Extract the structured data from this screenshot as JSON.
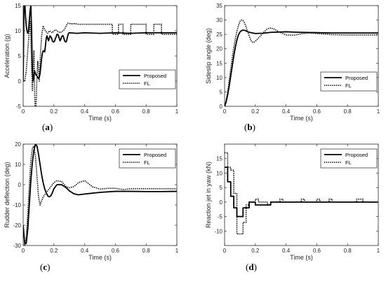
{
  "chart_data": [
    {
      "type": "line",
      "panel_label": "a",
      "xlabel": "Time (s)",
      "ylabel": "Acceleration (g)",
      "xlim": [
        0,
        1
      ],
      "ylim": [
        -5,
        15
      ],
      "xticks": [
        "0",
        "0.2",
        "0.4",
        "0.6",
        "0.8",
        "1"
      ],
      "yticks": [
        "-5",
        "0",
        "5",
        "10",
        "15"
      ],
      "grid": false,
      "legend": "right",
      "series": [
        {
          "name": "Proposed",
          "style": "solid",
          "x": [
            0,
            0.005,
            0.01,
            0.015,
            0.02,
            0.025,
            0.03,
            0.035,
            0.04,
            0.045,
            0.05,
            0.055,
            0.06,
            0.065,
            0.07,
            0.075,
            0.08,
            0.085,
            0.09,
            0.095,
            0.1,
            0.105,
            0.11,
            0.115,
            0.12,
            0.125,
            0.13,
            0.135,
            0.14,
            0.145,
            0.15,
            0.155,
            0.16,
            0.165,
            0.17,
            0.175,
            0.18,
            0.185,
            0.19,
            0.195,
            0.2,
            0.205,
            0.21,
            0.215,
            0.22,
            0.225,
            0.23,
            0.235,
            0.24,
            0.245,
            0.25,
            0.255,
            0.26,
            0.265,
            0.27,
            0.275,
            0.28,
            0.285,
            0.29,
            0.295,
            0.3,
            0.35,
            0.4,
            0.5,
            0.6,
            0.7,
            0.8,
            0.9,
            1.0
          ],
          "y": [
            0,
            14,
            16,
            13,
            11,
            10,
            9.5,
            10,
            12,
            14,
            15,
            10,
            2,
            0,
            1,
            2,
            1.5,
            1.2,
            1,
            0.8,
            0.5,
            0.8,
            1.5,
            3,
            4.5,
            5.5,
            6,
            6,
            5.8,
            7,
            8.5,
            9,
            8.5,
            8,
            8.5,
            9,
            8.8,
            8.5,
            8,
            7.8,
            7.8,
            8,
            8.5,
            8.8,
            9.3,
            9.3,
            9,
            8.5,
            8,
            8.3,
            8.8,
            9,
            9,
            8.5,
            8,
            7.8,
            7.8,
            8.3,
            9,
            9.5,
            9.6,
            9.5,
            9.6,
            9.5,
            9.6,
            9.5,
            9.6,
            9.6,
            9.6
          ]
        },
        {
          "name": "FL",
          "style": "dotted",
          "x": [
            0,
            0.01,
            0.02,
            0.03,
            0.04,
            0.045,
            0.05,
            0.055,
            0.06,
            0.065,
            0.07,
            0.075,
            0.08,
            0.085,
            0.09,
            0.095,
            0.1,
            0.105,
            0.11,
            0.12,
            0.125,
            0.13,
            0.14,
            0.15,
            0.16,
            0.17,
            0.18,
            0.19,
            0.2,
            0.21,
            0.22,
            0.23,
            0.24,
            0.25,
            0.26,
            0.27,
            0.28,
            0.29,
            0.3,
            0.31,
            0.32,
            0.33,
            0.34,
            0.35,
            0.5,
            0.58,
            0.58,
            0.62,
            0.62,
            0.65,
            0.65,
            0.7,
            0.7,
            0.8,
            0.8,
            0.85,
            0.85,
            0.9,
            0.9,
            1.0
          ],
          "y": [
            0,
            0,
            2,
            6,
            10,
            12,
            9,
            3,
            -2,
            2,
            6,
            -3,
            -6,
            -4,
            1,
            4,
            2,
            0,
            4,
            9,
            10,
            11,
            10.2,
            9.8,
            9.5,
            10,
            9.8,
            9.6,
            10,
            10.2,
            10,
            9.8,
            9.6,
            9.8,
            10,
            10.3,
            11,
            11.5,
            11.5,
            11.3,
            11.5,
            11.3,
            11.5,
            11.3,
            11.3,
            11.3,
            9.3,
            9.3,
            11.3,
            11.3,
            9.3,
            9.3,
            11.3,
            11.3,
            9.3,
            9.3,
            11.3,
            11.3,
            9.3,
            9.3
          ]
        }
      ]
    },
    {
      "type": "line",
      "panel_label": "b",
      "xlabel": "Time (s)",
      "ylabel": "Sideslip angle (deg)",
      "xlim": [
        0,
        1
      ],
      "ylim": [
        0,
        35
      ],
      "xticks": [
        "0",
        "0.2",
        "0.4",
        "0.6",
        "0.8",
        "1"
      ],
      "yticks": [
        "0",
        "5",
        "10",
        "15",
        "20",
        "25",
        "30",
        "35"
      ],
      "grid": false,
      "legend": "bottom-right",
      "series": [
        {
          "name": "Proposed",
          "style": "solid",
          "x": [
            0,
            0.01,
            0.02,
            0.03,
            0.04,
            0.05,
            0.06,
            0.07,
            0.08,
            0.09,
            0.1,
            0.11,
            0.12,
            0.13,
            0.14,
            0.15,
            0.17,
            0.2,
            0.25,
            0.3,
            0.35,
            0.4,
            0.45,
            0.5,
            0.6,
            0.7,
            0.8,
            0.9,
            1.0
          ],
          "y": [
            0,
            1.5,
            4,
            7,
            10.5,
            14,
            17.5,
            20.5,
            23,
            24.8,
            25.8,
            26.3,
            26.5,
            26.4,
            26.2,
            25.9,
            25.6,
            25.3,
            25.4,
            25.7,
            25.8,
            25.9,
            25.8,
            25.7,
            25.6,
            25.5,
            25.5,
            25.5,
            25.5
          ]
        },
        {
          "name": "FL",
          "style": "dotted",
          "x": [
            0,
            0.01,
            0.02,
            0.03,
            0.04,
            0.05,
            0.06,
            0.07,
            0.08,
            0.09,
            0.1,
            0.11,
            0.12,
            0.13,
            0.14,
            0.15,
            0.16,
            0.17,
            0.18,
            0.19,
            0.2,
            0.22,
            0.25,
            0.28,
            0.3,
            0.32,
            0.35,
            0.4,
            0.45,
            0.5,
            0.55,
            0.6,
            0.65,
            0.7,
            0.8,
            0.9,
            1.0
          ],
          "y": [
            0,
            2,
            5,
            9,
            13,
            17,
            20.5,
            23.5,
            26,
            28,
            29.5,
            30,
            29.8,
            29,
            27.5,
            26,
            24.5,
            23,
            22.3,
            22.2,
            22.6,
            23.7,
            25.5,
            27,
            27.2,
            26.9,
            26,
            24.8,
            24.7,
            25.2,
            25.5,
            25.3,
            25.1,
            24.9,
            24.8,
            24.8,
            24.8
          ]
        }
      ]
    },
    {
      "type": "line",
      "panel_label": "c",
      "xlabel": "Time (s)",
      "ylabel": "Rudder deflection (deg)",
      "xlim": [
        0,
        1
      ],
      "ylim": [
        -30,
        20
      ],
      "xticks": [
        "0",
        "0.2",
        "0.4",
        "0.6",
        "0.8",
        "1"
      ],
      "yticks": [
        "-30",
        "-20",
        "-10",
        "0",
        "10",
        "20"
      ],
      "grid": false,
      "legend": "top-right",
      "series": [
        {
          "name": "Proposed",
          "style": "solid",
          "x": [
            0,
            0.01,
            0.02,
            0.03,
            0.04,
            0.05,
            0.06,
            0.07,
            0.08,
            0.09,
            0.1,
            0.11,
            0.12,
            0.13,
            0.14,
            0.15,
            0.16,
            0.17,
            0.18,
            0.19,
            0.2,
            0.22,
            0.25,
            0.28,
            0.3,
            0.33,
            0.36,
            0.4,
            0.5,
            0.6,
            0.7,
            0.8,
            0.9,
            1.0
          ],
          "y": [
            -20,
            -29,
            -29,
            -22,
            -10,
            2,
            11,
            17,
            20,
            19,
            15,
            10,
            5,
            1,
            -2,
            -4,
            -5.5,
            -6,
            -5.5,
            -4,
            -2,
            0,
            0,
            -1.5,
            -3,
            -4.5,
            -5,
            -4.6,
            -3.8,
            -3.3,
            -3.3,
            -3.4,
            -3.4,
            -3.3
          ]
        },
        {
          "name": "FL",
          "style": "dotted",
          "x": [
            0,
            0.01,
            0.02,
            0.03,
            0.04,
            0.05,
            0.06,
            0.07,
            0.08,
            0.09,
            0.1,
            0.11,
            0.12,
            0.13,
            0.14,
            0.15,
            0.16,
            0.18,
            0.2,
            0.22,
            0.25,
            0.28,
            0.3,
            0.33,
            0.36,
            0.4,
            0.45,
            0.5,
            0.55,
            0.6,
            0.65,
            0.7,
            0.8,
            0.9,
            1.0
          ],
          "y": [
            -30,
            -30,
            -26,
            -14,
            0,
            12,
            18,
            19,
            14,
            4,
            -6,
            -10,
            -8,
            -6,
            -5,
            -4,
            -3,
            -1,
            1,
            2,
            1.5,
            -1,
            -1.5,
            -1,
            1,
            2,
            -1,
            -2.2,
            -1.8,
            -1.8,
            -2.4,
            -2,
            -2,
            -2,
            -2
          ]
        }
      ]
    },
    {
      "type": "line",
      "panel_label": "d",
      "xlabel": "Time (s)",
      "ylabel": "Reaction jet in yaw (kN)",
      "xlim": [
        0,
        1
      ],
      "ylim": [
        -15,
        20
      ],
      "xticks": [
        "0",
        "0.2",
        "0.4",
        "0.6",
        "0.8",
        "1"
      ],
      "yticks": [
        "-10",
        "-5",
        "0",
        "5",
        "10",
        "15"
      ],
      "grid": false,
      "legend": "top-right",
      "series": [
        {
          "name": "Proposed",
          "style": "solid",
          "x": [
            0,
            0.02,
            0.02,
            0.04,
            0.04,
            0.06,
            0.06,
            0.08,
            0.08,
            0.12,
            0.12,
            0.16,
            0.16,
            0.2,
            0.2,
            0.24,
            0.24,
            0.3,
            0.3,
            1.0
          ],
          "y": [
            12,
            12,
            7,
            7,
            2,
            2,
            -2,
            -2,
            -5,
            -5,
            -2,
            -2,
            0,
            0,
            -1,
            -1,
            -1,
            -1,
            0,
            0
          ]
        },
        {
          "name": "FL",
          "style": "dotted",
          "x": [
            0,
            0.02,
            0.02,
            0.04,
            0.04,
            0.06,
            0.06,
            0.08,
            0.08,
            0.1,
            0.1,
            0.12,
            0.12,
            0.14,
            0.14,
            0.16,
            0.16,
            0.2,
            0.2,
            0.22,
            0.22,
            0.28,
            0.28,
            0.3,
            0.3,
            0.36,
            0.36,
            0.38,
            0.38,
            0.5,
            0.5,
            0.52,
            0.52,
            0.6,
            0.6,
            0.62,
            0.62,
            0.68,
            0.68,
            0.7,
            0.7,
            0.86,
            0.86,
            0.9,
            0.9,
            1.0
          ],
          "y": [
            17,
            17,
            12,
            12,
            11,
            11,
            3,
            3,
            -11,
            -11,
            -11,
            -11,
            -7,
            -7,
            -1,
            -1,
            0,
            0,
            1,
            1,
            0,
            0,
            -1,
            -1,
            0,
            0,
            1,
            1,
            0,
            0,
            1,
            1,
            0,
            0,
            1,
            1,
            0,
            0,
            1,
            1,
            0,
            0,
            1,
            1,
            0,
            0
          ]
        }
      ]
    }
  ]
}
